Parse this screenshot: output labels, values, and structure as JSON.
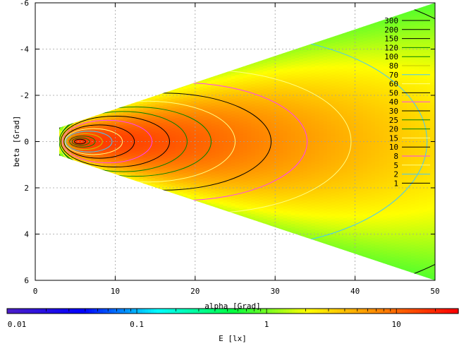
{
  "chart_data": {
    "type": "heatmap",
    "title": "",
    "xlabel": "alpha [Grad]",
    "ylabel": "beta [Grad]",
    "xlim": [
      0,
      50
    ],
    "ylim": [
      6,
      -6
    ],
    "y_axis_inverted": true,
    "grid": true,
    "x_ticks": [
      "0",
      "10",
      "20",
      "30",
      "40",
      "50"
    ],
    "y_ticks": [
      "-6",
      "-4",
      "-2",
      "0",
      "2",
      "4",
      "6"
    ],
    "colorbar": {
      "label": "E [lx]",
      "scale": "log",
      "range": [
        0.01,
        30
      ],
      "tick_labels": [
        "0.01",
        "0.1",
        "1",
        "10"
      ],
      "colors": [
        "#4b1ec8",
        "#0000ff",
        "#00ffff",
        "#00ff40",
        "#ffff00",
        "#ff8000",
        "#ff0000"
      ]
    },
    "illuminated_region": {
      "apex_alpha": 3,
      "half_width_beta_at_apex": 0.6,
      "half_width_beta_at_alpha_50": 6
    },
    "peak": {
      "alpha": 5.5,
      "beta": 0
    },
    "contour_legend": {
      "position": "top-right",
      "levels": [
        "300",
        "200",
        "150",
        "120",
        "100",
        "80",
        "70",
        "60",
        "50",
        "40",
        "30",
        "25",
        "20",
        "15",
        "10",
        "8",
        "5",
        "2",
        "1"
      ],
      "colors": [
        "#000000",
        "#000000",
        "#000000",
        "#008000",
        "#008000",
        "#c8c800",
        "#40c8ff",
        "#ffff80",
        "#000000",
        "#ff40ff",
        "#000000",
        "#008000",
        "#008000",
        "#ffff80",
        "#000000",
        "#ff40ff",
        "#ffff80",
        "#40c8ff",
        "#000000"
      ]
    },
    "contours": [
      {
        "level": "1",
        "color": "#000000",
        "center_alpha": 30,
        "half_alpha": 32,
        "half_beta": 6.8
      },
      {
        "level": "2",
        "color": "#40c8ff",
        "center_alpha": 25,
        "half_alpha": 24,
        "half_beta": 4.6
      },
      {
        "level": "5",
        "color": "#ffff80",
        "center_alpha": 21,
        "half_alpha": 18.5,
        "half_beta": 3.1
      },
      {
        "level": "8",
        "color": "#ff40ff",
        "center_alpha": 18,
        "half_alpha": 16,
        "half_beta": 2.55
      },
      {
        "level": "10",
        "color": "#000000",
        "center_alpha": 16,
        "half_alpha": 13.5,
        "half_beta": 2.1
      },
      {
        "level": "15",
        "color": "#ffff80",
        "center_alpha": 14,
        "half_alpha": 11,
        "half_beta": 1.75
      },
      {
        "level": "20",
        "color": "#008000",
        "center_alpha": 12.5,
        "half_alpha": 9.5,
        "half_beta": 1.5
      },
      {
        "level": "25",
        "color": "#008000",
        "center_alpha": 11,
        "half_alpha": 8,
        "half_beta": 1.3
      },
      {
        "level": "30",
        "color": "#000000",
        "center_alpha": 10,
        "half_alpha": 6.8,
        "half_beta": 1.1
      },
      {
        "level": "40",
        "color": "#ff40ff",
        "center_alpha": 9,
        "half_alpha": 5.6,
        "half_beta": 0.92
      },
      {
        "level": "50",
        "color": "#000000",
        "center_alpha": 8,
        "half_alpha": 4.4,
        "half_beta": 0.72
      },
      {
        "level": "60",
        "color": "#ffff80",
        "center_alpha": 7.3,
        "half_alpha": 3.6,
        "half_beta": 0.56
      },
      {
        "level": "70",
        "color": "#40c8ff",
        "center_alpha": 6.7,
        "half_alpha": 2.9,
        "half_beta": 0.45
      },
      {
        "level": "80",
        "color": "#c8c800",
        "center_alpha": 6.2,
        "half_alpha": 2.2,
        "half_beta": 0.34
      },
      {
        "level": "100",
        "color": "#008000",
        "center_alpha": 5.9,
        "half_alpha": 1.6,
        "half_beta": 0.24
      },
      {
        "level": "120",
        "color": "#008000",
        "center_alpha": 5.7,
        "half_alpha": 1.1,
        "half_beta": 0.16
      },
      {
        "level": "150",
        "color": "#000000",
        "center_alpha": 5.6,
        "half_alpha": 0.7,
        "half_beta": 0.1
      }
    ]
  }
}
